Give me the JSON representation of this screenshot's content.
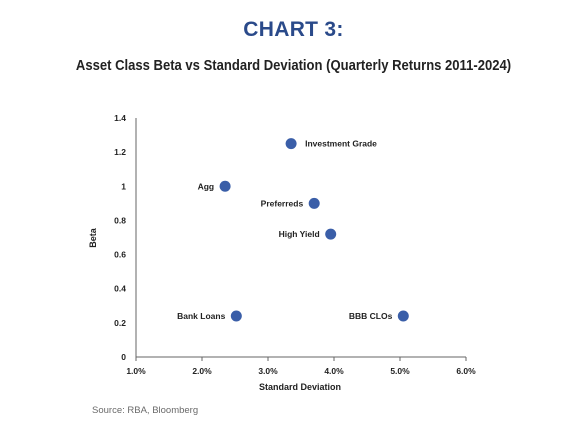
{
  "header": {
    "title": "CHART 3:",
    "subtitle": "Asset Class Beta vs Standard Deviation (Quarterly Returns 2011-2024)"
  },
  "footer": {
    "source": "Source: RBA, Bloomberg"
  },
  "colors": {
    "accent": "#2a4a8a",
    "point": "#3a5ea8",
    "axis": "#666666"
  },
  "chart_data": {
    "type": "scatter",
    "title": "Asset Class Beta vs Standard Deviation (Quarterly Returns 2011-2024)",
    "xlabel": "Standard Deviation",
    "ylabel": "Beta",
    "xlim": [
      0.01,
      0.06
    ],
    "ylim": [
      0,
      1.4
    ],
    "x_ticks": [
      0.01,
      0.02,
      0.03,
      0.04,
      0.05,
      0.06
    ],
    "x_tick_labels": [
      "1.0%",
      "2.0%",
      "3.0%",
      "4.0%",
      "5.0%",
      "6.0%"
    ],
    "y_ticks": [
      0,
      0.2,
      0.4,
      0.6,
      0.8,
      1,
      1.2,
      1.4
    ],
    "y_tick_labels": [
      "0",
      "0.2",
      "0.4",
      "0.6",
      "0.8",
      "1",
      "1.2",
      "1.4"
    ],
    "grid": false,
    "points": [
      {
        "label": "Investment Grade",
        "x": 0.0335,
        "y": 1.25,
        "label_side": "right"
      },
      {
        "label": "Agg",
        "x": 0.0235,
        "y": 1.0,
        "label_side": "left"
      },
      {
        "label": "Preferreds",
        "x": 0.037,
        "y": 0.9,
        "label_side": "left"
      },
      {
        "label": "High Yield",
        "x": 0.0395,
        "y": 0.72,
        "label_side": "left"
      },
      {
        "label": "Bank Loans",
        "x": 0.0252,
        "y": 0.24,
        "label_side": "left"
      },
      {
        "label": "BBB CLOs",
        "x": 0.0505,
        "y": 0.24,
        "label_side": "left"
      }
    ]
  }
}
